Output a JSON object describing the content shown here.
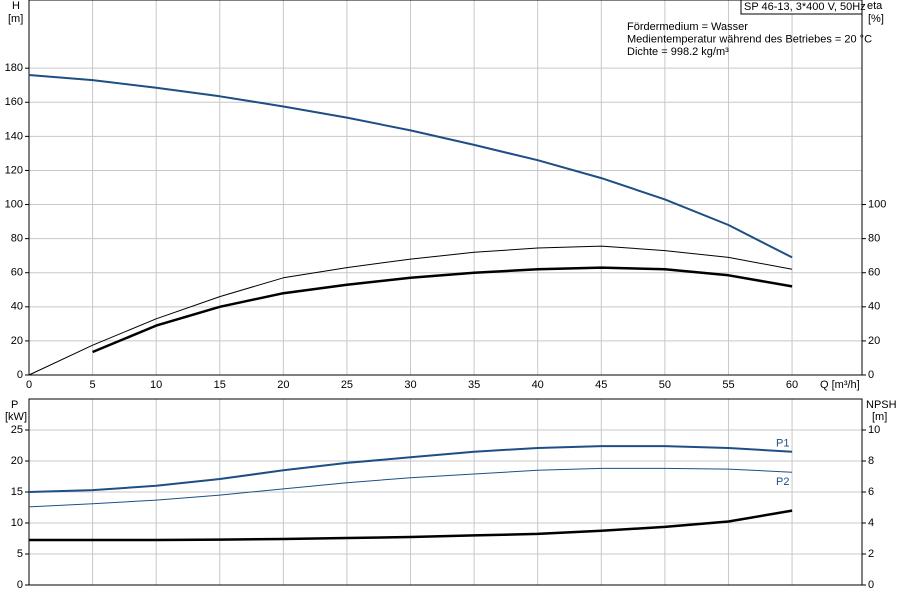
{
  "chart_data": [
    {
      "type": "line",
      "title": "SP 46-13, 3*400 V, 50Hz",
      "annotations": [
        "Fördermedium = Wasser",
        "Medientemperatur während des Betriebes = 20 °C",
        "Dichte = 998.2 kg/m³"
      ],
      "xlabel": "Q [m³/h]",
      "ylabel": "H",
      "yunit": "[m]",
      "y2label": "eta",
      "y2unit": "[%]",
      "x": [
        0,
        5,
        10,
        15,
        20,
        25,
        30,
        35,
        40,
        45,
        50,
        55,
        60
      ],
      "series": [
        {
          "color": "#1d4f85",
          "width": 2,
          "axis": "y",
          "values": [
            176,
            173,
            168.5,
            163.5,
            157.5,
            151,
            143.5,
            135,
            126,
            115.5,
            103,
            88,
            69
          ]
        },
        {
          "color": "#000000",
          "width": 1,
          "axis": "y2",
          "values": [
            0,
            17.5,
            33,
            46,
            57,
            63,
            68,
            72,
            74.5,
            75.6,
            73,
            69,
            62
          ]
        },
        {
          "color": "#000000",
          "width": 2.5,
          "axis": "y2",
          "values": [
            null,
            13.5,
            29,
            40,
            48,
            53,
            57,
            60,
            62,
            63,
            62,
            58.5,
            52
          ]
        }
      ],
      "xlim": [
        0,
        65.5
      ],
      "xticks": [
        0,
        5,
        10,
        15,
        20,
        25,
        30,
        35,
        40,
        45,
        50,
        55,
        60
      ],
      "ylim": [
        0,
        220
      ],
      "yticks": [
        0,
        20,
        40,
        60,
        80,
        100,
        120,
        140,
        160,
        180
      ],
      "y2lim": [
        0,
        220
      ],
      "y2ticks": [
        0,
        20,
        40,
        60,
        80,
        100
      ],
      "grid": true
    },
    {
      "type": "line",
      "ylabel": "P",
      "yunit": "[kW]",
      "y2label": "NPSH",
      "y2unit": "[m]",
      "x": [
        0,
        5,
        10,
        15,
        20,
        25,
        30,
        35,
        40,
        45,
        50,
        55,
        60
      ],
      "series": [
        {
          "name": "P1",
          "color": "#1d4f85",
          "width": 2,
          "axis": "y",
          "values": [
            15.0,
            15.3,
            16,
            17.1,
            18.5,
            19.7,
            20.6,
            21.5,
            22.1,
            22.4,
            22.4,
            22.1,
            21.5
          ]
        },
        {
          "name": "P2",
          "color": "#1d4f85",
          "width": 1,
          "axis": "y",
          "values": [
            12.6,
            13.1,
            13.7,
            14.5,
            15.5,
            16.5,
            17.3,
            17.9,
            18.5,
            18.8,
            18.8,
            18.7,
            18.2
          ]
        },
        {
          "color": "#000000",
          "width": 2.5,
          "axis": "y2",
          "values": [
            2.9,
            2.9,
            2.9,
            2.93,
            2.97,
            3.03,
            3.1,
            3.2,
            3.3,
            3.5,
            3.75,
            4.1,
            4.8
          ]
        }
      ],
      "xlim": [
        0,
        65.5
      ],
      "ylim": [
        0,
        30
      ],
      "yticks": [
        0,
        5,
        10,
        15,
        20,
        25
      ],
      "y2lim": [
        0,
        12
      ],
      "y2ticks": [
        0,
        2,
        4,
        6,
        8,
        10
      ],
      "grid": true
    }
  ]
}
